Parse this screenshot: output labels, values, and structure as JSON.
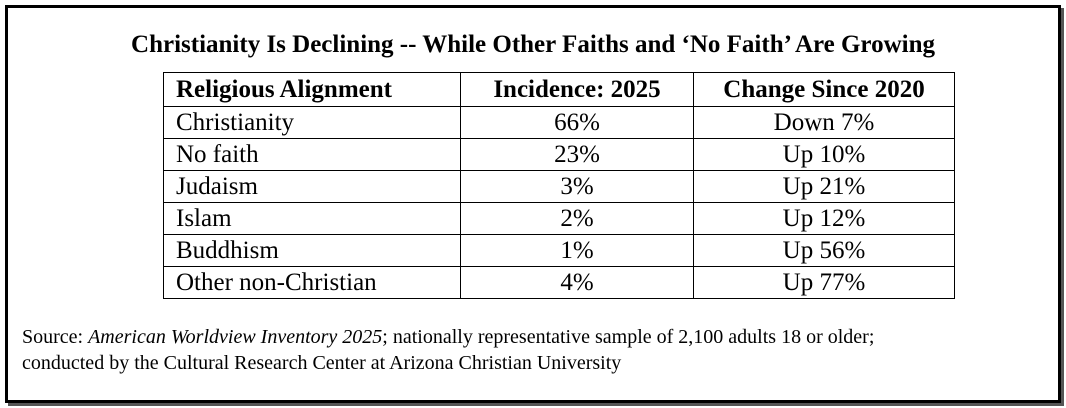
{
  "title": "Christianity Is Declining -- While Other Faiths and ‘No Faith’ Are Growing",
  "table": {
    "headers": [
      "Religious Alignment",
      "Incidence: 2025",
      "Change Since 2020"
    ],
    "rows": [
      [
        "Christianity",
        "66%",
        "Down 7%"
      ],
      [
        "No faith",
        "23%",
        "Up 10%"
      ],
      [
        "Judaism",
        "3%",
        "Up 21%"
      ],
      [
        "Islam",
        "2%",
        "Up 12%"
      ],
      [
        "Buddhism",
        "1%",
        "Up 56%"
      ],
      [
        "Other non-Christian",
        "4%",
        "Up 77%"
      ]
    ]
  },
  "source": {
    "prefix": "Source: ",
    "publication": "American Worldview Inventory 2025",
    "line1_rest": "; nationally representative sample of 2,100 adults 18 or older;",
    "line2": "conducted by the Cultural Research Center at Arizona Christian University"
  }
}
